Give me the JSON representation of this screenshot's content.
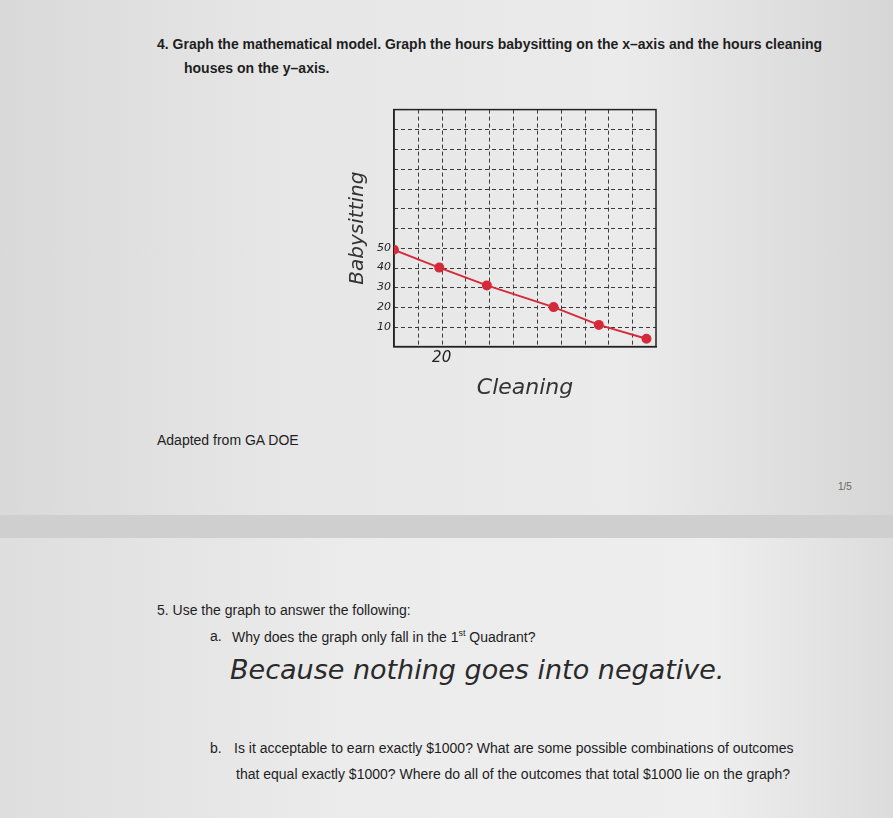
{
  "page1": {
    "question_lines": [
      "4.  Graph the mathematical model. Graph the hours babysitting on the x–axis and the hours cleaning",
      "houses on the y–axis."
    ],
    "source": "Adapted from GA DOE",
    "page_number": "1/5"
  },
  "chart_data": {
    "type": "line",
    "x_label": "Cleaning",
    "y_label": "Babysitting",
    "x": [
      0,
      19,
      39,
      67,
      86,
      106
    ],
    "values": [
      49,
      40,
      31,
      20,
      11,
      4
    ],
    "color": "#d42a3a",
    "marker": "circle",
    "line_style": "solid",
    "xlim": [
      0,
      110
    ],
    "xticks": [
      20
    ],
    "ylim": [
      0,
      120
    ],
    "yticks": [
      10,
      20,
      30,
      40,
      50
    ],
    "grid": true
  },
  "page2": {
    "heading": "5.  Use the graph to answer the following:",
    "question_a": {
      "label": "a.",
      "text_before": "Why does the graph only fall in the 1",
      "superscript": "st",
      "text_after": " Quadrant?",
      "answer": "Because nothing goes into negative."
    },
    "question_b": {
      "label": "b.",
      "lines": [
        "Is it acceptable to earn exactly $1000? What are some possible combinations of outcomes",
        "that equal exactly $1000? Where do all of the outcomes that total $1000 lie on the graph?"
      ]
    }
  }
}
